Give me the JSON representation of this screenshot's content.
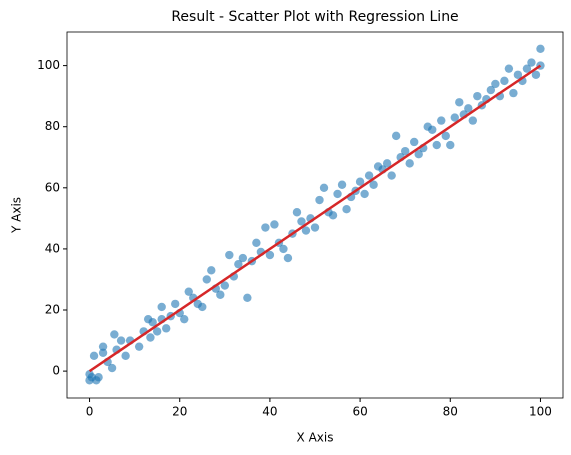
{
  "chart_data": {
    "type": "scatter",
    "title": "Result - Scatter Plot with Regression Line",
    "x_label": "X Axis",
    "y_label": "Y Axis",
    "xlim": [
      -5,
      105
    ],
    "ylim": [
      -8.8,
      111
    ],
    "xticks": [
      0,
      20,
      40,
      60,
      80,
      100
    ],
    "yticks": [
      0,
      20,
      40,
      60,
      80,
      100
    ],
    "grid": false,
    "series": [
      {
        "type": "scatter",
        "color": "#1f77b4",
        "x": [
          0,
          0,
          0.5,
          1,
          1.5,
          2,
          3,
          3,
          4,
          5,
          5.5,
          6,
          7,
          8,
          9,
          11,
          12,
          13,
          13.5,
          14,
          15,
          16,
          16,
          17,
          18,
          19,
          20,
          21,
          22,
          23,
          24,
          25,
          26,
          27,
          28,
          29,
          30,
          31,
          32,
          33,
          34,
          35,
          36,
          37,
          38,
          39,
          40,
          41,
          42,
          43,
          44,
          45,
          46,
          47,
          48,
          49,
          50,
          51,
          52,
          53,
          54,
          55,
          56,
          57,
          58,
          59,
          60,
          61,
          62,
          63,
          64,
          65,
          66,
          67,
          68,
          69,
          70,
          71,
          72,
          73,
          74,
          75,
          76,
          77,
          78,
          79,
          80,
          81,
          82,
          83,
          84,
          85,
          86,
          87,
          88,
          89,
          90,
          91,
          92,
          93,
          94,
          95,
          96,
          97,
          98,
          99,
          100,
          100
        ],
        "values": [
          -3,
          -1,
          -2,
          5,
          -3,
          -2,
          8,
          6,
          3,
          1,
          12,
          7,
          10,
          5,
          10,
          8,
          13,
          17,
          11,
          16,
          13,
          21,
          17,
          14,
          18,
          22,
          19,
          17,
          26,
          24,
          22,
          21,
          30,
          33,
          27,
          25,
          28,
          38,
          31,
          35,
          37,
          24,
          36,
          42,
          39,
          47,
          38,
          48,
          42,
          40,
          37,
          45,
          52,
          49,
          46,
          50,
          47,
          56,
          60,
          52,
          51,
          58,
          61,
          53,
          57,
          59,
          62,
          58,
          64,
          61,
          67,
          66,
          68,
          64,
          77,
          70,
          72,
          68,
          75,
          71,
          73,
          80,
          79,
          74,
          82,
          77,
          74,
          83,
          88,
          84,
          86,
          82,
          90,
          87,
          89,
          92,
          94,
          90,
          95,
          99,
          91,
          97,
          95,
          99,
          101,
          97,
          105.5,
          100
        ]
      },
      {
        "type": "line",
        "color": "#d62728",
        "x": [
          0,
          100
        ],
        "values": [
          0,
          100
        ]
      }
    ]
  }
}
